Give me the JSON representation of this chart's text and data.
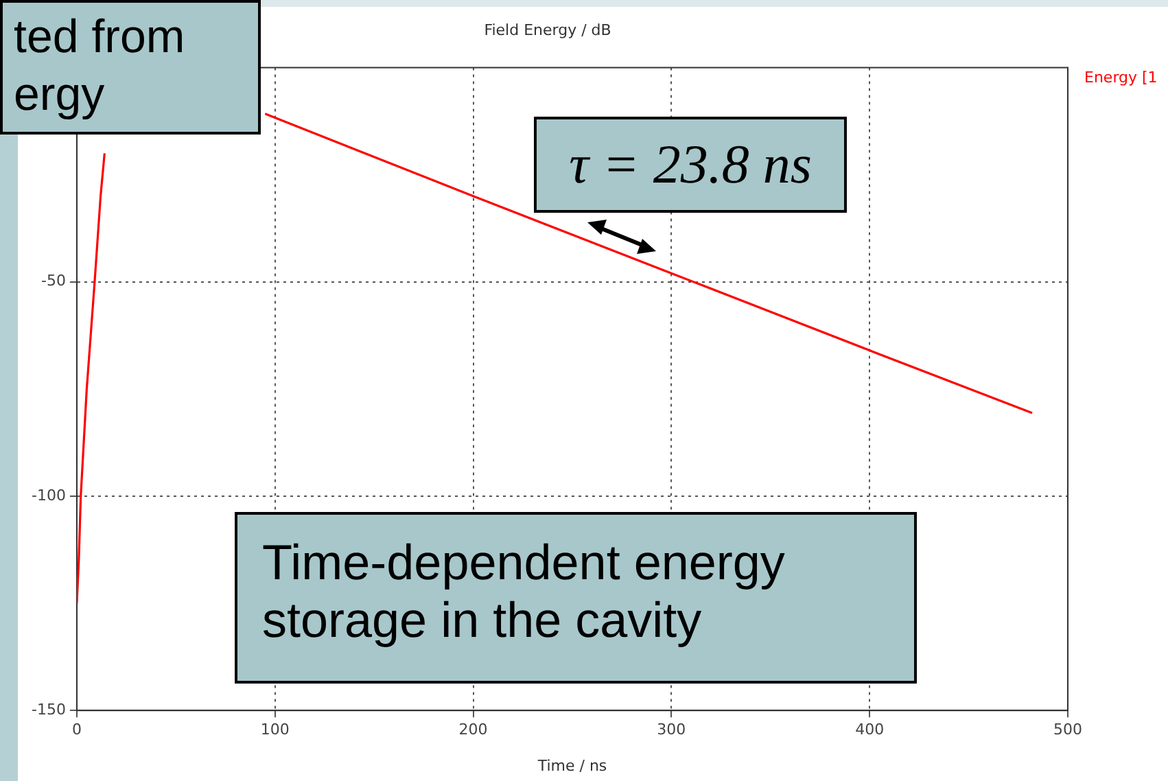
{
  "chart_data": {
    "type": "line",
    "title": "Field Energy / dB",
    "xlabel": "Time / ns",
    "x": [
      0,
      1,
      2,
      5,
      9,
      12,
      14,
      50,
      95,
      100,
      200,
      300,
      400,
      482
    ],
    "series": [
      {
        "name": "Energy [1",
        "color": "#ff0000",
        "values": [
          -125,
          -115,
          -100,
          -75,
          -50,
          -30,
          -20,
          null,
          -10.8,
          -11.7,
          -30,
          -48,
          -66,
          -80.6
        ]
      }
    ],
    "xlim": [
      0,
      500
    ],
    "xticks": [
      0,
      100,
      200,
      300,
      400,
      500
    ],
    "ylim": [
      -150,
      0
    ],
    "yticks": [
      -150,
      -100,
      -50
    ],
    "grid": true,
    "legend": "top right",
    "marker": "none",
    "line_style": "solid",
    "annotations": [
      "τ = 23.8 ns",
      "Time-dependent energy storage in the cavity",
      "ted from ergy"
    ]
  }
}
